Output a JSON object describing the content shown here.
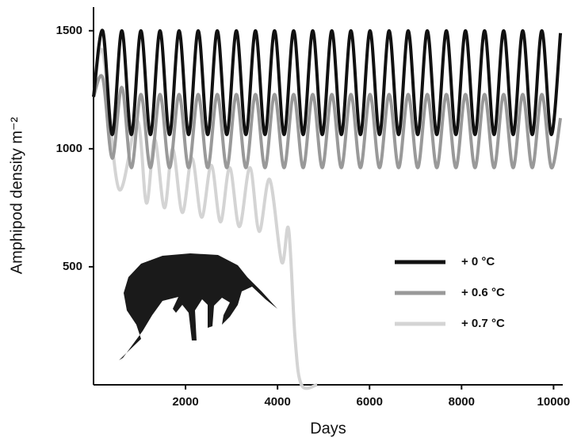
{
  "chart_data": {
    "type": "line",
    "x_label": "Days",
    "y_label": "Amphipod density m⁻²",
    "xlim": [
      0,
      10200
    ],
    "ylim": [
      0,
      1600
    ],
    "xticks": [
      2000,
      4000,
      6000,
      8000,
      10000
    ],
    "yticks": [
      500,
      1000,
      1500
    ],
    "grid": false,
    "legend": "lower right",
    "series": [
      {
        "name": "+ 0 °C",
        "color": "#111111",
        "x": [
          0,
          200,
          407,
          615,
          822,
          1030,
          1237,
          1445,
          1652,
          1860,
          2067,
          2275,
          2482,
          2690,
          2897,
          3105,
          3312,
          3520,
          3727,
          3935,
          4142,
          4350,
          4557,
          4765,
          4972,
          5180,
          5387,
          5595,
          5802,
          6010,
          6217,
          6425,
          6632,
          6840,
          7047,
          7255,
          7462,
          7670,
          7877,
          8085,
          8292,
          8500,
          8707,
          8915,
          9122,
          9330,
          9537,
          9745,
          9952,
          10150
        ],
        "values": [
          1220,
          1500,
          1060,
          1500,
          1060,
          1500,
          1060,
          1500,
          1060,
          1500,
          1060,
          1500,
          1060,
          1500,
          1060,
          1500,
          1060,
          1500,
          1060,
          1500,
          1060,
          1500,
          1060,
          1500,
          1060,
          1500,
          1060,
          1500,
          1060,
          1500,
          1060,
          1500,
          1060,
          1500,
          1060,
          1500,
          1060,
          1500,
          1060,
          1500,
          1060,
          1500,
          1060,
          1500,
          1060,
          1500,
          1060,
          1500,
          1060,
          1490
        ]
      },
      {
        "name": "+ 0.6 °C",
        "color": "#999999",
        "x": [
          0,
          200,
          407,
          615,
          822,
          1030,
          1237,
          1445,
          1652,
          1860,
          2067,
          2275,
          2482,
          2690,
          2897,
          3105,
          3312,
          3520,
          3727,
          3935,
          4142,
          4350,
          4557,
          4765,
          4972,
          5180,
          5387,
          5595,
          5802,
          6010,
          6217,
          6425,
          6632,
          6840,
          7047,
          7255,
          7462,
          7670,
          7877,
          8085,
          8292,
          8500,
          8707,
          8915,
          9122,
          9330,
          9537,
          9745,
          9952,
          10150
        ],
        "values": [
          1220,
          1300,
          960,
          1260,
          920,
          1230,
          920,
          1230,
          920,
          1230,
          920,
          1230,
          920,
          1230,
          920,
          1230,
          920,
          1230,
          920,
          1230,
          920,
          1230,
          920,
          1230,
          920,
          1230,
          920,
          1230,
          920,
          1230,
          920,
          1230,
          920,
          1230,
          920,
          1230,
          920,
          1230,
          920,
          1230,
          920,
          1230,
          920,
          1230,
          920,
          1230,
          920,
          1230,
          920,
          1130
        ]
      },
      {
        "name": "+ 0.7 °C",
        "color": "#d4d4d4",
        "x": [
          0,
          200,
          550,
          950,
          1150,
          1330,
          1540,
          1720,
          1930,
          2140,
          2350,
          2560,
          2760,
          2960,
          3170,
          3400,
          3600,
          3830,
          4090,
          4240,
          4380,
          4520,
          4860
        ],
        "values": [
          1220,
          1410,
          830,
          1120,
          770,
          1040,
          750,
          1000,
          730,
          960,
          710,
          930,
          690,
          920,
          670,
          920,
          650,
          870,
          520,
          660,
          200,
          0,
          0
        ]
      }
    ]
  }
}
